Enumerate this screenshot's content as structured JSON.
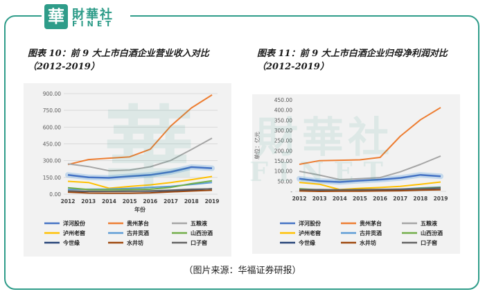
{
  "brand": {
    "seal_char": "華",
    "name_cn": "財華社",
    "name_en": "FINET",
    "accent": "#2e9c89"
  },
  "source": "（图片来源：华福证券研报）",
  "chart_data": [
    {
      "type": "line",
      "title": "图表 10：前 9 大上市白酒企业营业收入对比（2012-2019）",
      "title_line1": "图表 10：前 9 大上市白酒企业营业收入对比",
      "title_line2": "（2012-2019）",
      "xlabel": "年份",
      "ylabel": "",
      "x": [
        "2012",
        "2013",
        "2014",
        "2015",
        "2016",
        "2017",
        "2018",
        "2019"
      ],
      "ylim": [
        0,
        900
      ],
      "yticks": [
        "0.00",
        "150.00",
        "300.00",
        "450.00",
        "600.00",
        "750.00",
        "900.00"
      ],
      "grid": true,
      "legend_position": "bottom",
      "series": [
        {
          "name": "洋河股份",
          "color": "#4472c4",
          "highlight": true,
          "values": [
            172,
            150,
            146,
            160,
            172,
            199,
            242,
            232
          ]
        },
        {
          "name": "贵州茅台",
          "color": "#ed7d31",
          "values": [
            265,
            310,
            322,
            334,
            402,
            611,
            772,
            888
          ]
        },
        {
          "name": "五粮液",
          "color": "#a5a5a5",
          "values": [
            272,
            247,
            210,
            216,
            245,
            302,
            400,
            501
          ]
        },
        {
          "name": "泸州老窖",
          "color": "#ffc000",
          "values": [
            115,
            104,
            53,
            69,
            83,
            104,
            130,
            158
          ]
        },
        {
          "name": "古井贡酒",
          "color": "#5b9bd5",
          "values": [
            42,
            44,
            46,
            52,
            60,
            70,
            86,
            104
          ]
        },
        {
          "name": "山西汾酒",
          "color": "#70ad47",
          "values": [
            57,
            41,
            39,
            41,
            44,
            61,
            94,
            119
          ]
        },
        {
          "name": "今世缘",
          "color": "#264478",
          "values": [
            22,
            25,
            25,
            26,
            26,
            29,
            37,
            49
          ]
        },
        {
          "name": "水井坊",
          "color": "#9e480e",
          "values": [
            18,
            10,
            9,
            9,
            12,
            20,
            28,
            35
          ]
        },
        {
          "name": "口子窖",
          "color": "#636363",
          "values": [
            29,
            26,
            25,
            27,
            30,
            36,
            44,
            47
          ]
        }
      ]
    },
    {
      "type": "line",
      "title": "图表 11：前 9 大上市白酒企业归母净利润对比（2012-2019）",
      "title_line1": "图表 11：前 9 大上市白酒企业归母净利润对比",
      "title_line2": "（2012-2019）",
      "xlabel": "",
      "ylabel": "单位：亿元",
      "x": [
        "2012",
        "2013",
        "2014",
        "2015",
        "2016",
        "2017",
        "2018",
        "2019"
      ],
      "ylim": [
        0,
        450
      ],
      "yticks": [
        "-",
        "50.00",
        "100.00",
        "150.00",
        "200.00",
        "250.00",
        "300.00",
        "350.00",
        "400.00",
        "450.00"
      ],
      "grid": false,
      "legend_position": "bottom",
      "series": [
        {
          "name": "洋河股份",
          "color": "#4472c4",
          "highlight": true,
          "values": [
            62,
            50,
            46,
            53,
            58,
            66,
            81,
            74
          ]
        },
        {
          "name": "贵州茅台",
          "color": "#ed7d31",
          "values": [
            133,
            151,
            153,
            155,
            167,
            271,
            352,
            412
          ]
        },
        {
          "name": "五粮液",
          "color": "#a5a5a5",
          "values": [
            99,
            80,
            58,
            62,
            68,
            96,
            133,
            174
          ]
        },
        {
          "name": "泸州老窖",
          "color": "#ffc000",
          "values": [
            44,
            35,
            9,
            15,
            19,
            25,
            35,
            46
          ]
        },
        {
          "name": "古井贡酒",
          "color": "#5b9bd5",
          "values": [
            7,
            6,
            6,
            7,
            9,
            11,
            17,
            21
          ]
        },
        {
          "name": "山西汾酒",
          "color": "#70ad47",
          "values": [
            13,
            8,
            4,
            5,
            6,
            9,
            15,
            19
          ]
        },
        {
          "name": "今世缘",
          "color": "#264478",
          "values": [
            7,
            7,
            7,
            7,
            7,
            8,
            11,
            15
          ]
        },
        {
          "name": "水井坊",
          "color": "#9e480e",
          "values": [
            2,
            0,
            1,
            1,
            2,
            3,
            6,
            8
          ]
        },
        {
          "name": "口子窖",
          "color": "#636363",
          "values": [
            9,
            9,
            8,
            9,
            10,
            11,
            13,
            17
          ]
        }
      ]
    }
  ]
}
